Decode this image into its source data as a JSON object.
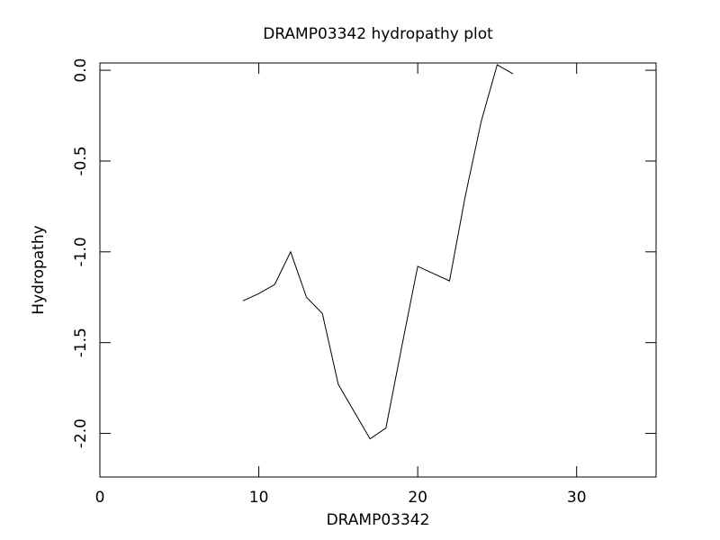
{
  "chart_data": {
    "type": "line",
    "title": "DRAMP03342 hydropathy plot",
    "x_label": "DRAMP03342",
    "y_label": "Hydropathy",
    "x": [
      9,
      10,
      11,
      12,
      13,
      14,
      15,
      16,
      17,
      18,
      19,
      20,
      21,
      22,
      23,
      24,
      25,
      26
    ],
    "series": [
      {
        "color": "#000000",
        "values": [
          -1.27,
          -1.23,
          -1.18,
          -1.0,
          -1.25,
          -1.34,
          -1.73,
          -1.88,
          -2.03,
          -1.97,
          -1.52,
          -1.08,
          -1.12,
          -1.16,
          -0.69,
          -0.28,
          0.03,
          -0.02
        ]
      }
    ],
    "xlim": [
      0,
      35
    ],
    "xticks": [
      0,
      10,
      20,
      30
    ],
    "ylim": [
      -2.24,
      0.04
    ],
    "yticks": [
      {
        "value": 0,
        "label": "0.0"
      },
      -0.5,
      {
        "value": -1,
        "label": "-1.0"
      },
      -1.5,
      {
        "value": -2,
        "label": "-2.0"
      }
    ]
  }
}
